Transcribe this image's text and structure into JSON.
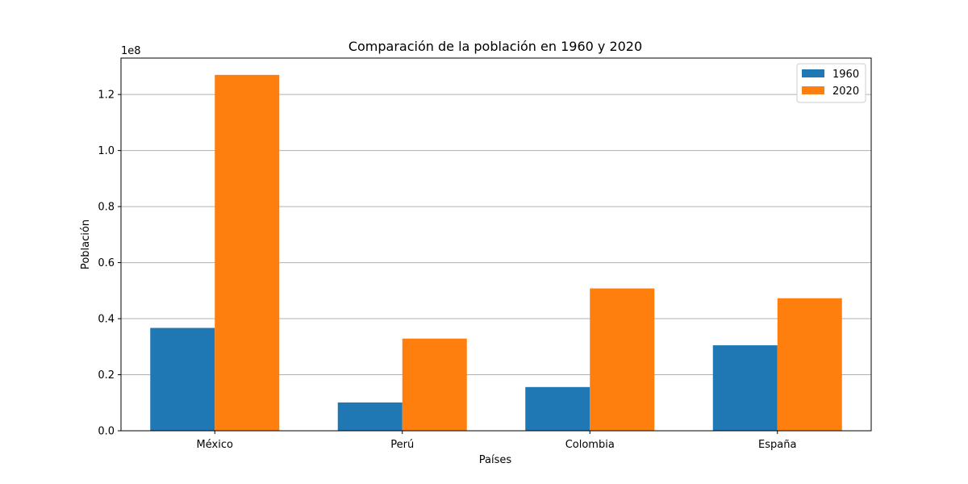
{
  "chart_data": {
    "type": "bar",
    "title": "Comparación de la población en 1960 y 2020",
    "xlabel": "Países",
    "ylabel": "Población",
    "y_offset_label": "1e8",
    "categories": [
      "México",
      "Perú",
      "Colombia",
      "España"
    ],
    "series": [
      {
        "name": "1960",
        "color": "#1f77b4",
        "values": [
          36700000,
          10100000,
          15600000,
          30500000
        ]
      },
      {
        "name": "2020",
        "color": "#ff7f0e",
        "values": [
          127000000,
          32900000,
          50800000,
          47300000
        ]
      }
    ],
    "ylim": [
      0,
      133000000
    ],
    "yticks": [
      0,
      20000000,
      40000000,
      60000000,
      80000000,
      100000000,
      120000000
    ],
    "ytick_labels": [
      "0.0",
      "0.2",
      "0.4",
      "0.6",
      "0.8",
      "1.0",
      "1.2"
    ],
    "grid": "horizontal",
    "legend_position": "top-right"
  }
}
